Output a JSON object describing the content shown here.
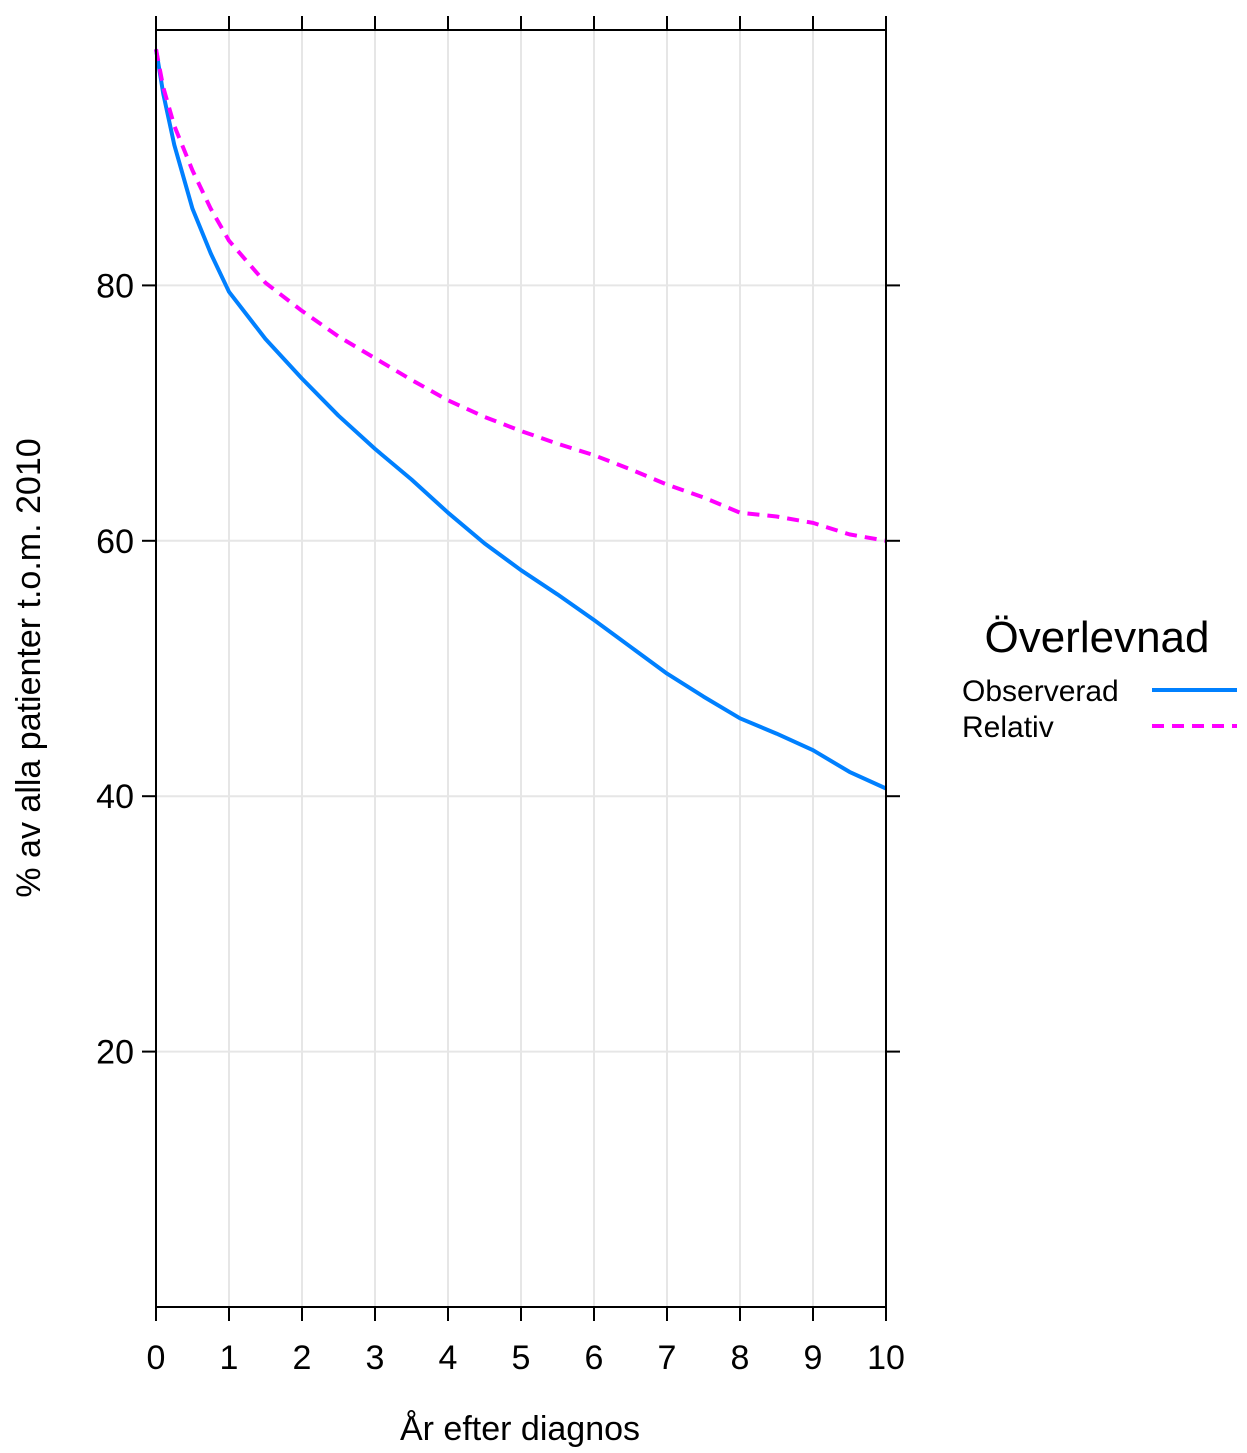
{
  "chart_data": {
    "type": "line",
    "xlabel": "År efter diagnos",
    "ylabel": "% av alla patienter t.o.m. 2010",
    "xlim": [
      0,
      10
    ],
    "ylim": [
      0,
      100
    ],
    "xticks": [
      "0",
      "1",
      "2",
      "3",
      "4",
      "5",
      "6",
      "7",
      "8",
      "9",
      "10"
    ],
    "yticks": [
      "20",
      "40",
      "60",
      "80"
    ],
    "grid": true,
    "legend": {
      "title": "Överlevnad",
      "position": "right"
    },
    "series": [
      {
        "name": "Observerad",
        "color": "#0080ff",
        "dash": "solid",
        "x": [
          0,
          0.1,
          0.25,
          0.5,
          0.75,
          1,
          1.5,
          2,
          2.5,
          3,
          3.5,
          4,
          4.5,
          5,
          5.5,
          6,
          6.5,
          7,
          7.5,
          8,
          8.5,
          9,
          9.5,
          10
        ],
        "y": [
          98.5,
          95,
          91,
          86,
          82.5,
          79.5,
          75.8,
          72.7,
          69.8,
          67.2,
          64.8,
          62.2,
          59.8,
          57.7,
          55.8,
          53.8,
          51.7,
          49.6,
          47.8,
          46.1,
          44.9,
          43.6,
          41.9,
          40.6
        ]
      },
      {
        "name": "Relativ",
        "color": "#ff00ff",
        "dash": "dashed",
        "x": [
          0,
          0.1,
          0.25,
          0.5,
          0.75,
          1,
          1.5,
          2,
          2.5,
          3,
          3.5,
          4,
          4.5,
          5,
          5.5,
          6,
          6.5,
          7,
          7.5,
          8,
          8.5,
          9,
          9.5,
          10
        ],
        "y": [
          98.5,
          95.5,
          92.5,
          89,
          86,
          83.5,
          80.2,
          78,
          76,
          74.3,
          72.6,
          71,
          69.7,
          68.6,
          67.6,
          66.7,
          65.6,
          64.4,
          63.4,
          62.2,
          61.9,
          61.4,
          60.5,
          60.0
        ]
      }
    ]
  }
}
